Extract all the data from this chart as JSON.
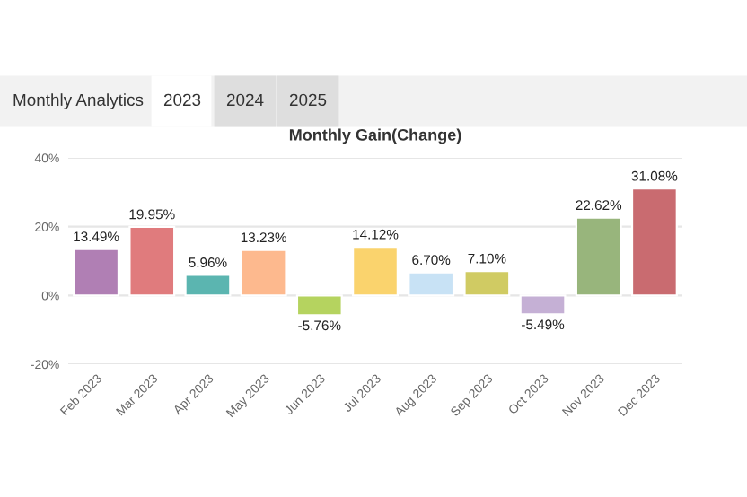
{
  "chart_data": {
    "type": "bar",
    "title": "Monthly Gain(Change)",
    "annotations": [
      "Monthly Analytics",
      "2023",
      "2024",
      "2025"
    ],
    "categories": [
      "Feb 2023",
      "Mar 2023",
      "Apr 2023",
      "May 2023",
      "Jun 2023",
      "Jul 2023",
      "Aug 2023",
      "Sep 2023",
      "Oct 2023",
      "Nov 2023",
      "Dec 2023"
    ],
    "values": [
      13.49,
      19.95,
      5.96,
      13.23,
      -5.76,
      14.12,
      6.7,
      7.1,
      -5.49,
      22.62,
      31.08
    ],
    "value_labels": [
      "13.49%",
      "19.95%",
      "5.96%",
      "13.23%",
      "-5.76%",
      "14.12%",
      "6.70%",
      "7.10%",
      "-5.49%",
      "22.62%",
      "31.08%"
    ],
    "colors": [
      "#b07fb4",
      "#e07b7d",
      "#5bb5b0",
      "#fdb98e",
      "#b5d35f",
      "#fad36d",
      "#c8e2f5",
      "#d0cb63",
      "#c5b0d5",
      "#98b57c",
      "#c96b70"
    ],
    "ylim": [
      -20,
      40
    ],
    "yticks": [
      {
        "value": -20,
        "label": "-20%"
      },
      {
        "value": 0,
        "label": "0%"
      },
      {
        "value": 20,
        "label": "20%"
      },
      {
        "value": 40,
        "label": "40%"
      }
    ],
    "grid": "y",
    "legend": false
  }
}
